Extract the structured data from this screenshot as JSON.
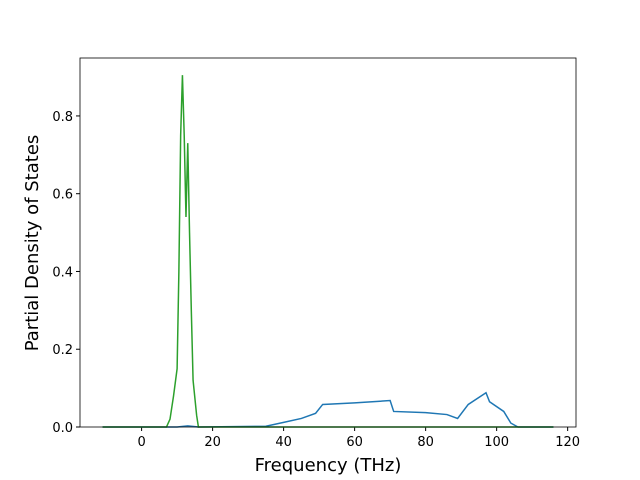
{
  "chart_data": {
    "type": "line",
    "x_label": "Frequency (THz)",
    "y_label": "Partial Density of States",
    "xlim": [
      -17.35,
      122.35
    ],
    "ylim": [
      0,
      0.949
    ],
    "xticks": [
      0,
      20,
      40,
      60,
      80,
      100,
      120
    ],
    "yticks": [
      {
        "value": 0,
        "label": "0.0"
      },
      0.2,
      0.4,
      0.6,
      0.8
    ],
    "series": [
      {
        "color": "#1f77b4",
        "x": [
          -11,
          10,
          13,
          16,
          35,
          40,
          45,
          49,
          51,
          60,
          70,
          71,
          80,
          86,
          89,
          92,
          97,
          98,
          102,
          104,
          106,
          116
        ],
        "values": [
          0,
          0,
          0.003,
          0,
          0.002,
          0.012,
          0.022,
          0.035,
          0.058,
          0.062,
          0.068,
          0.04,
          0.037,
          0.032,
          0.022,
          0.058,
          0.088,
          0.065,
          0.04,
          0.01,
          0,
          0
        ]
      },
      {
        "color": "#2ca02c",
        "x": [
          -11,
          7,
          8,
          9,
          10,
          10.5,
          11,
          11.5,
          12,
          12.5,
          13,
          13.5,
          14,
          14.5,
          15.5,
          16,
          116
        ],
        "values": [
          0,
          0,
          0.02,
          0.08,
          0.15,
          0.4,
          0.75,
          0.905,
          0.75,
          0.54,
          0.73,
          0.5,
          0.3,
          0.12,
          0.03,
          0,
          0
        ]
      }
    ]
  }
}
